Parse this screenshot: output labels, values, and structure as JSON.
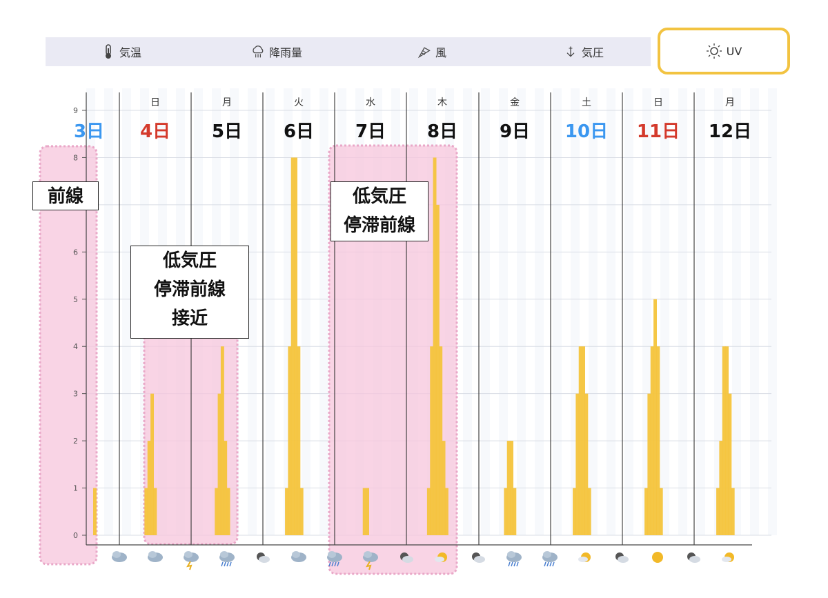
{
  "tabs": {
    "temp": {
      "label": "気温",
      "icon": "thermometer-icon"
    },
    "rain": {
      "label": "降雨量",
      "icon": "rain-cloud-icon"
    },
    "wind": {
      "label": "風",
      "icon": "wind-icon"
    },
    "pressure": {
      "label": "気圧",
      "icon": "pressure-arrow-icon"
    },
    "uv": {
      "label": "UV",
      "icon": "sun-icon",
      "selected": true
    }
  },
  "colors": {
    "bar": "#f4c43c",
    "highlight": "#f7c6dc",
    "highlight_border": "#e9a8c8",
    "sat": "#3b97f0",
    "sun": "#d43a2c",
    "weekday": "#111111",
    "selected_tab_border": "#f2c341"
  },
  "chart_data": {
    "type": "bar",
    "title": "",
    "xlabel": "",
    "ylabel": "",
    "ylim": [
      0,
      9
    ],
    "yticks": [
      0,
      1,
      2,
      3,
      4,
      5,
      6,
      7,
      8,
      9
    ],
    "grid": true,
    "days": [
      {
        "weekday": "",
        "day": "3日",
        "color": "sat",
        "uv": [
          1
        ]
      },
      {
        "weekday": "日",
        "day": "4日",
        "color": "sun",
        "uv": [
          1,
          2,
          3,
          1
        ]
      },
      {
        "weekday": "月",
        "day": "5日",
        "color": "weekday",
        "uv": [
          1,
          3,
          4,
          2,
          1
        ]
      },
      {
        "weekday": "火",
        "day": "6日",
        "color": "weekday",
        "uv": [
          1,
          4,
          8,
          8,
          4,
          1
        ]
      },
      {
        "weekday": "水",
        "day": "7日",
        "color": "weekday",
        "uv": [
          1,
          1
        ]
      },
      {
        "weekday": "木",
        "day": "8日",
        "color": "weekday",
        "uv": [
          1,
          4,
          8,
          7,
          4,
          2,
          1
        ]
      },
      {
        "weekday": "金",
        "day": "9日",
        "color": "weekday",
        "uv": [
          1,
          2,
          2,
          1
        ]
      },
      {
        "weekday": "土",
        "day": "10日",
        "color": "sat",
        "uv": [
          1,
          3,
          4,
          4,
          3,
          1
        ]
      },
      {
        "weekday": "日",
        "day": "11日",
        "color": "sun",
        "uv": [
          1,
          3,
          4,
          5,
          4,
          1
        ]
      },
      {
        "weekday": "月",
        "day": "12日",
        "color": "weekday",
        "uv": [
          1,
          2,
          4,
          4,
          3,
          1
        ]
      }
    ],
    "weather_icons": [
      "cloud",
      "cloud",
      "thunder",
      "rain",
      "partly-cloudy-night",
      "cloud",
      "rain",
      "thunder",
      "partly-cloudy-night",
      "partly-sunny",
      "partly-cloudy-night",
      "rain",
      "rain",
      "partly-sunny",
      "partly-cloudy-night",
      "sunny",
      "partly-cloudy-night",
      "partly-sunny"
    ]
  },
  "annotations": {
    "front": {
      "lines": [
        "前線"
      ]
    },
    "low_stagnant_approach": {
      "lines": [
        "低気圧",
        "停滞前線",
        "接近"
      ]
    },
    "low_stagnant": {
      "lines": [
        "低気圧",
        "停滞前線"
      ]
    }
  }
}
